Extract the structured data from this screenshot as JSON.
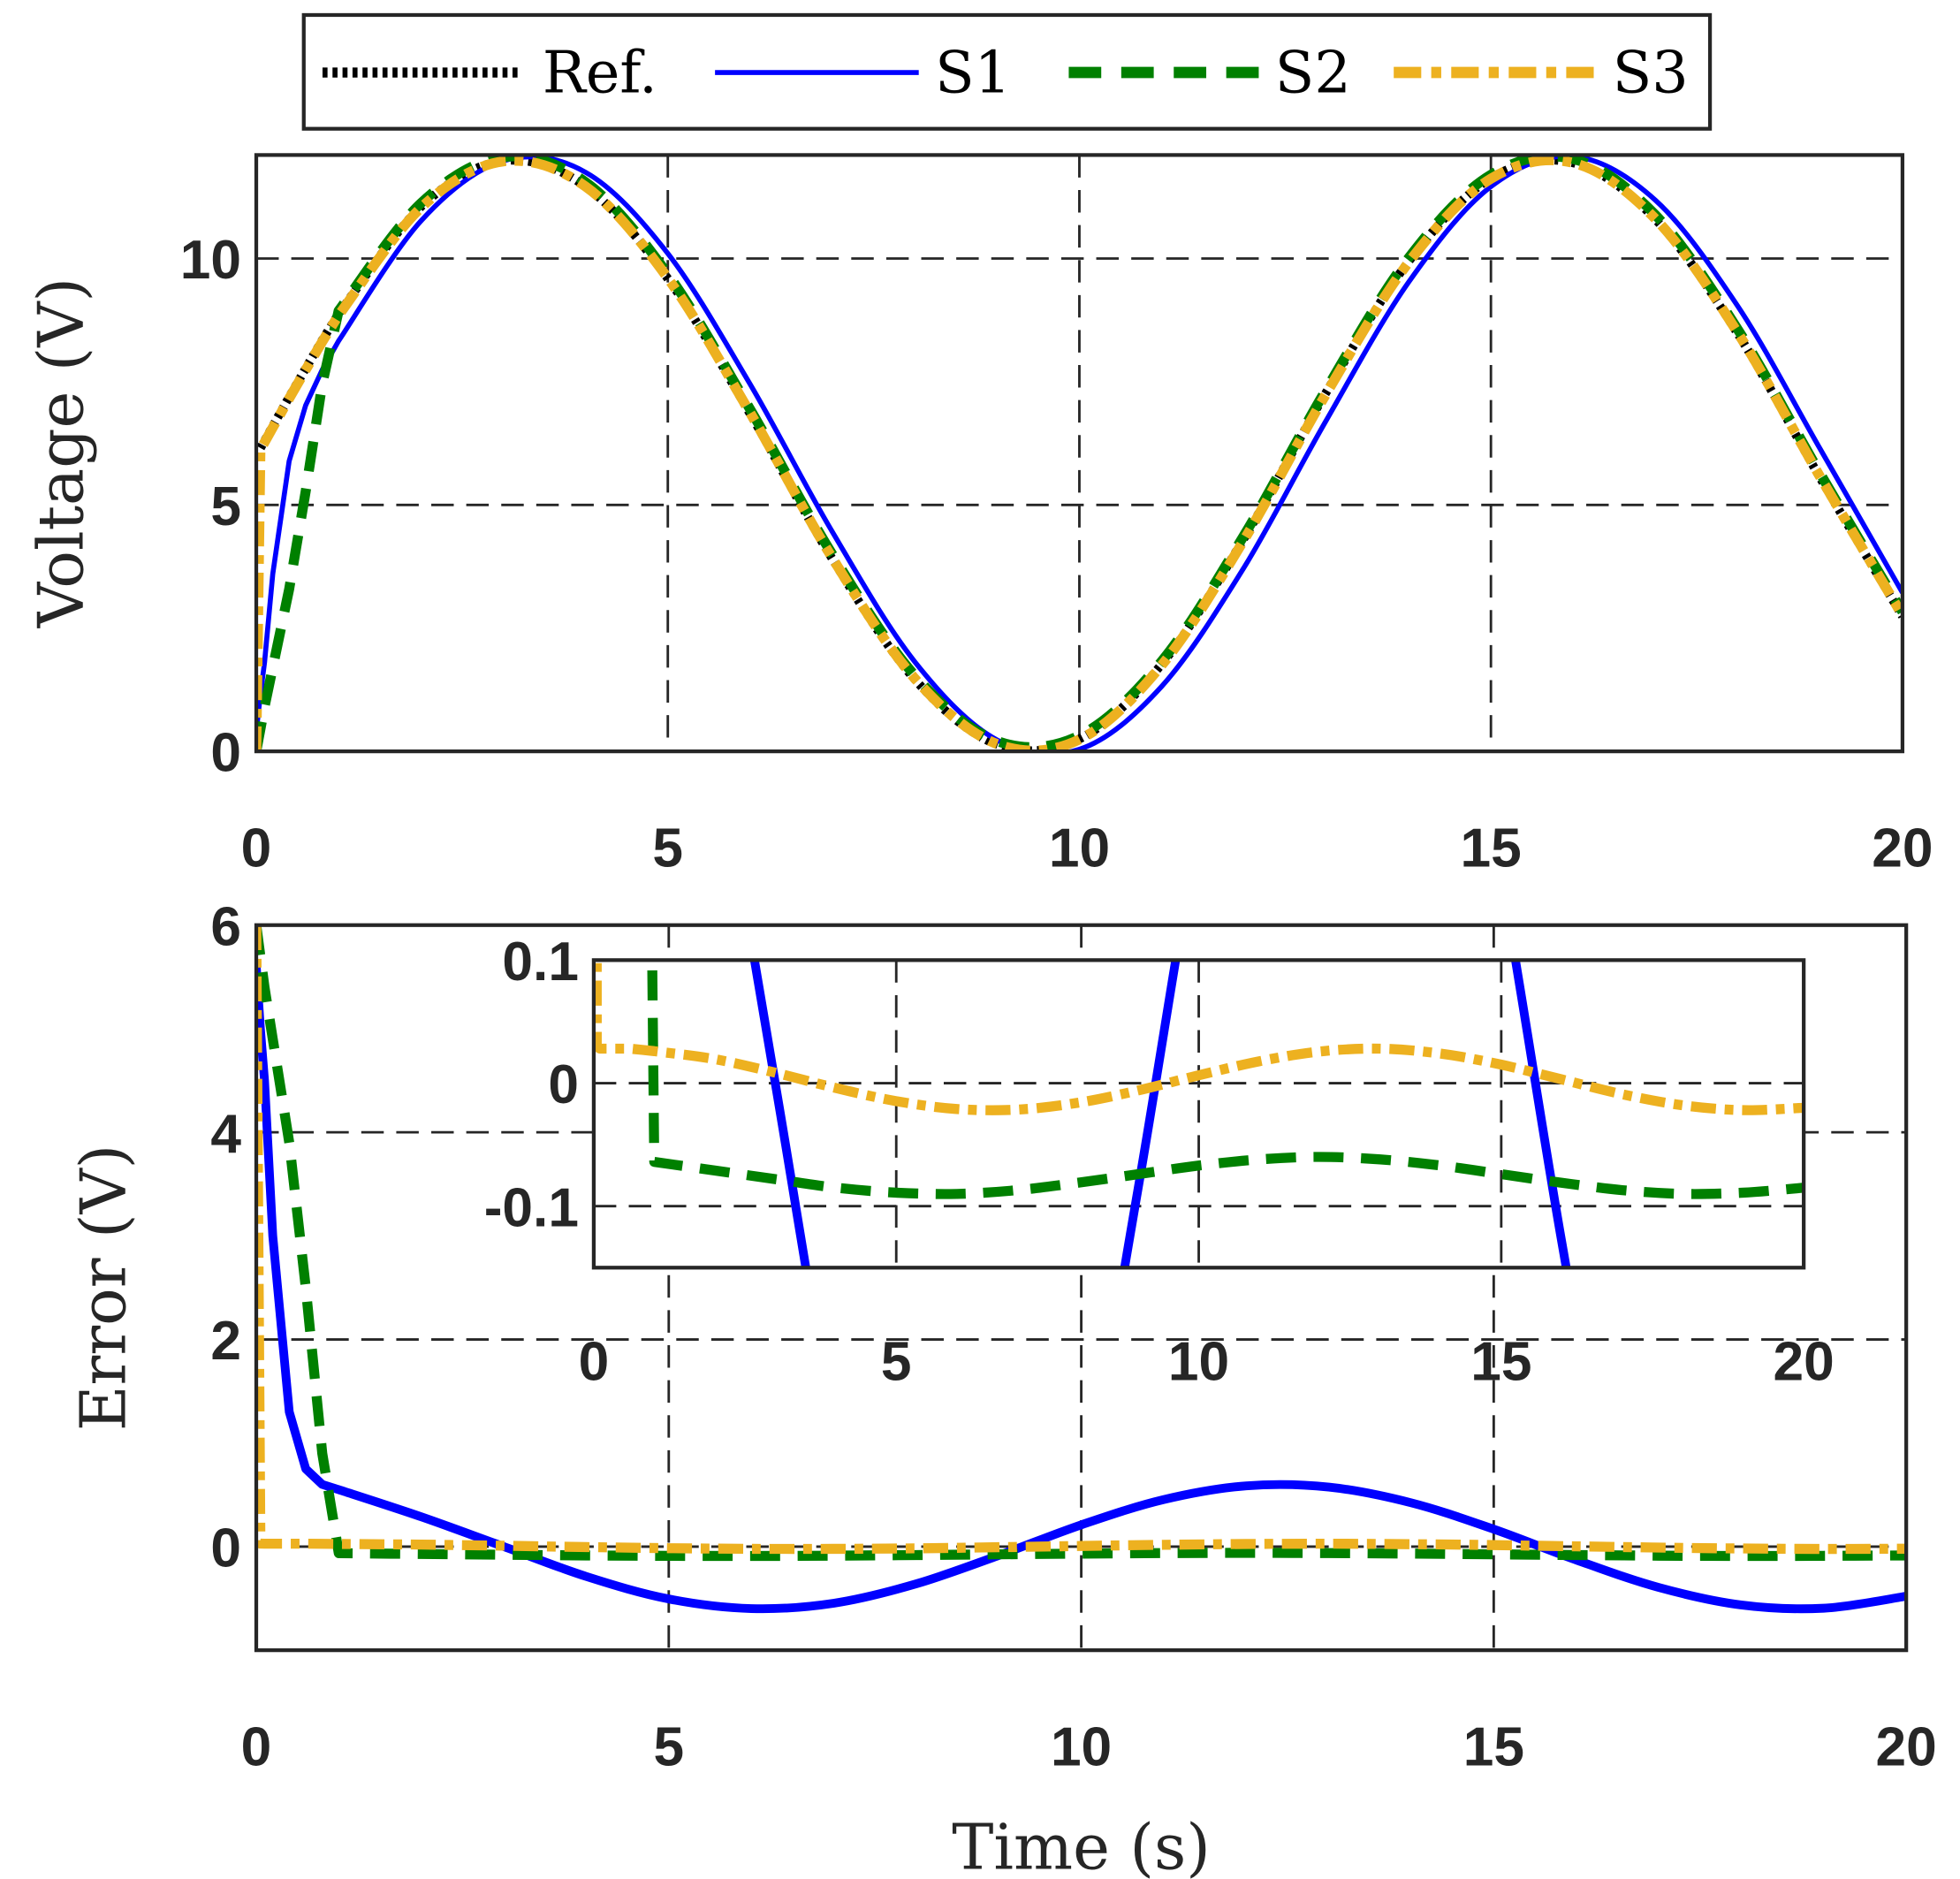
{
  "legend": {
    "placement": "top-outside",
    "entries": [
      {
        "label": "Ref.",
        "color": "#000000",
        "style": "dotted"
      },
      {
        "label": "S1",
        "color": "#0000FF",
        "style": "solid"
      },
      {
        "label": "S2",
        "color": "#008000",
        "style": "dashed"
      },
      {
        "label": "S3",
        "color": "#EDB120",
        "style": "dashdot"
      }
    ]
  },
  "chart_data": [
    {
      "type": "line",
      "title": "",
      "xlabel": "",
      "ylabel": "Voltage (V)",
      "xlim": [
        0,
        20
      ],
      "ylim": [
        0,
        12.1
      ],
      "xticks": [
        "0",
        "5",
        "10",
        "15",
        "20"
      ],
      "yticks": [
        "0",
        "5",
        "10"
      ],
      "grid": true,
      "x": [
        0,
        0.05,
        0.1,
        0.2,
        0.4,
        0.6,
        0.8,
        1,
        2,
        3,
        4,
        5,
        6,
        7,
        8,
        9,
        10,
        11,
        12,
        13,
        14,
        15,
        16,
        17,
        18,
        19,
        20
      ],
      "series": [
        {
          "name": "Ref.",
          "values": [
            6,
            6.15,
            6.3,
            6.6,
            7.19,
            7.77,
            8.34,
            8.88,
            11.05,
            11.98,
            11.46,
            9.59,
            6.85,
            3.9,
            1.46,
            0.14,
            0.25,
            1.77,
            4.32,
            7.29,
            9.94,
            11.63,
            11.94,
            10.79,
            8.47,
            5.55,
            2.74
          ]
        },
        {
          "name": "S1",
          "values": [
            0.4,
            1.15,
            1.8,
            3.6,
            5.89,
            7.02,
            7.74,
            8.33,
            10.76,
            11.98,
            11.75,
            10.1,
            7.45,
            4.45,
            1.82,
            0.23,
            0.04,
            1.32,
            3.73,
            6.72,
            9.52,
            11.46,
            12.07,
            11.18,
            9.03,
            6.14,
            3.22
          ]
        },
        {
          "name": "S2",
          "values": [
            0,
            0.45,
            0.9,
            1.7,
            3.29,
            5.27,
            7.44,
            8.94,
            11.12,
            12.06,
            11.55,
            9.68,
            6.94,
            3.99,
            1.54,
            0.21,
            0.32,
            1.83,
            4.38,
            7.35,
            10.01,
            11.7,
            12.02,
            10.88,
            8.56,
            5.64,
            2.83
          ]
        },
        {
          "name": "S3",
          "values": [
            0,
            6.12,
            6.27,
            6.57,
            7.16,
            7.74,
            8.31,
            8.85,
            11.03,
            11.97,
            11.46,
            9.6,
            6.87,
            3.92,
            1.48,
            0.15,
            0.24,
            1.75,
            4.29,
            7.26,
            9.92,
            11.62,
            11.94,
            10.8,
            8.49,
            5.57,
            2.76
          ]
        }
      ]
    },
    {
      "type": "line",
      "title": "",
      "xlabel": "Time (s)",
      "ylabel": "Error (V)",
      "xlim": [
        0,
        20
      ],
      "ylim": [
        -1,
        6
      ],
      "xticks": [
        "0",
        "5",
        "10",
        "15",
        "20"
      ],
      "yticks": [
        "0",
        "2",
        "4",
        "6"
      ],
      "grid": true,
      "x": [
        0,
        0.05,
        0.1,
        0.2,
        0.4,
        0.6,
        0.8,
        1,
        2,
        3,
        4,
        5,
        6,
        7,
        8,
        9,
        10,
        11,
        12,
        13,
        14,
        15,
        16,
        17,
        18,
        19,
        20
      ],
      "series": [
        {
          "name": "S1",
          "values": [
            5.6,
            5.0,
            4.5,
            3.0,
            1.3,
            0.75,
            0.6,
            0.55,
            0.288,
            0,
            -0.288,
            -0.505,
            -0.598,
            -0.546,
            -0.359,
            -0.085,
            0.21,
            0.454,
            0.587,
            0.575,
            0.423,
            0.168,
            -0.129,
            -0.394,
            -0.563,
            -0.594,
            -0.479
          ]
        },
        {
          "name": "S2",
          "values": [
            6,
            5.7,
            5.4,
            4.9,
            3.9,
            2.5,
            0.9,
            -0.064,
            -0.071,
            -0.078,
            -0.085,
            -0.089,
            -0.09,
            -0.087,
            -0.081,
            -0.074,
            -0.067,
            -0.062,
            -0.06,
            -0.062,
            -0.067,
            -0.074,
            -0.081,
            -0.087,
            -0.09,
            -0.089,
            -0.085
          ]
        },
        {
          "name": "S3",
          "values": [
            6,
            0.03,
            0.028,
            0.028,
            0.028,
            0.028,
            0.027,
            0.026,
            0.0195,
            0.0085,
            -0.004,
            -0.0146,
            -0.021,
            -0.0215,
            -0.016,
            -0.0059,
            0.0064,
            0.0178,
            0.0257,
            0.028,
            0.024,
            0.015,
            0.003,
            -0.009,
            -0.018,
            -0.022,
            -0.02
          ]
        }
      ],
      "inset": {
        "xlim": [
          0,
          20
        ],
        "ylim": [
          -0.15,
          0.1
        ],
        "xticks": [
          "0",
          "5",
          "10",
          "15",
          "20"
        ],
        "yticks": [
          "-0.1",
          "0",
          "0.1"
        ],
        "grid": true
      }
    }
  ]
}
